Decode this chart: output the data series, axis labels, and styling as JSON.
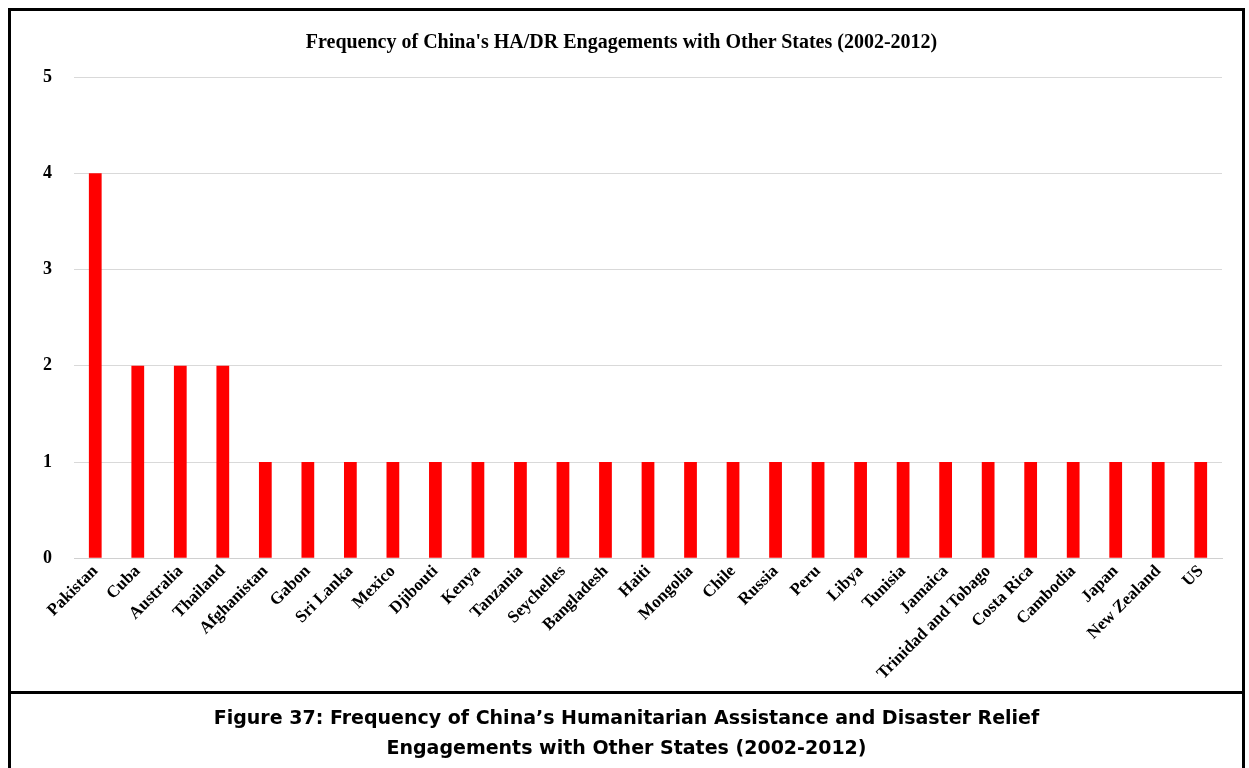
{
  "chart_data": {
    "type": "bar",
    "title": "Frequency of China's HA/DR Engagements with Other States (2002-2012)",
    "categories": [
      "Pakistan",
      "Cuba",
      "Australia",
      "Thailand",
      "Afghanistan",
      "Gabon",
      "Sri Lanka",
      "Mexico",
      "Djibouti",
      "Kenya",
      "Tanzania",
      "Seychelles",
      "Bangladesh",
      "Haiti",
      "Mongolia",
      "Chile",
      "Russia",
      "Peru",
      "Libya",
      "Tunisia",
      "Jamaica",
      "Trinidad and Tobago",
      "Costa Rica",
      "Cambodia",
      "Japan",
      "New Zealand",
      "US"
    ],
    "values": [
      4,
      2,
      2,
      2,
      1,
      1,
      1,
      1,
      1,
      1,
      1,
      1,
      1,
      1,
      1,
      1,
      1,
      1,
      1,
      1,
      1,
      1,
      1,
      1,
      1,
      1,
      1
    ],
    "color": "#ff0000",
    "ylim": [
      0,
      5
    ],
    "yticks": [
      0,
      1,
      2,
      3,
      4,
      5
    ],
    "grid": "y",
    "legend": false,
    "annotations": [
      "Figure 37: Frequency of China’s Humanitarian Assistance and Disaster Relief Engagements with Other States (2002-2012)"
    ]
  }
}
